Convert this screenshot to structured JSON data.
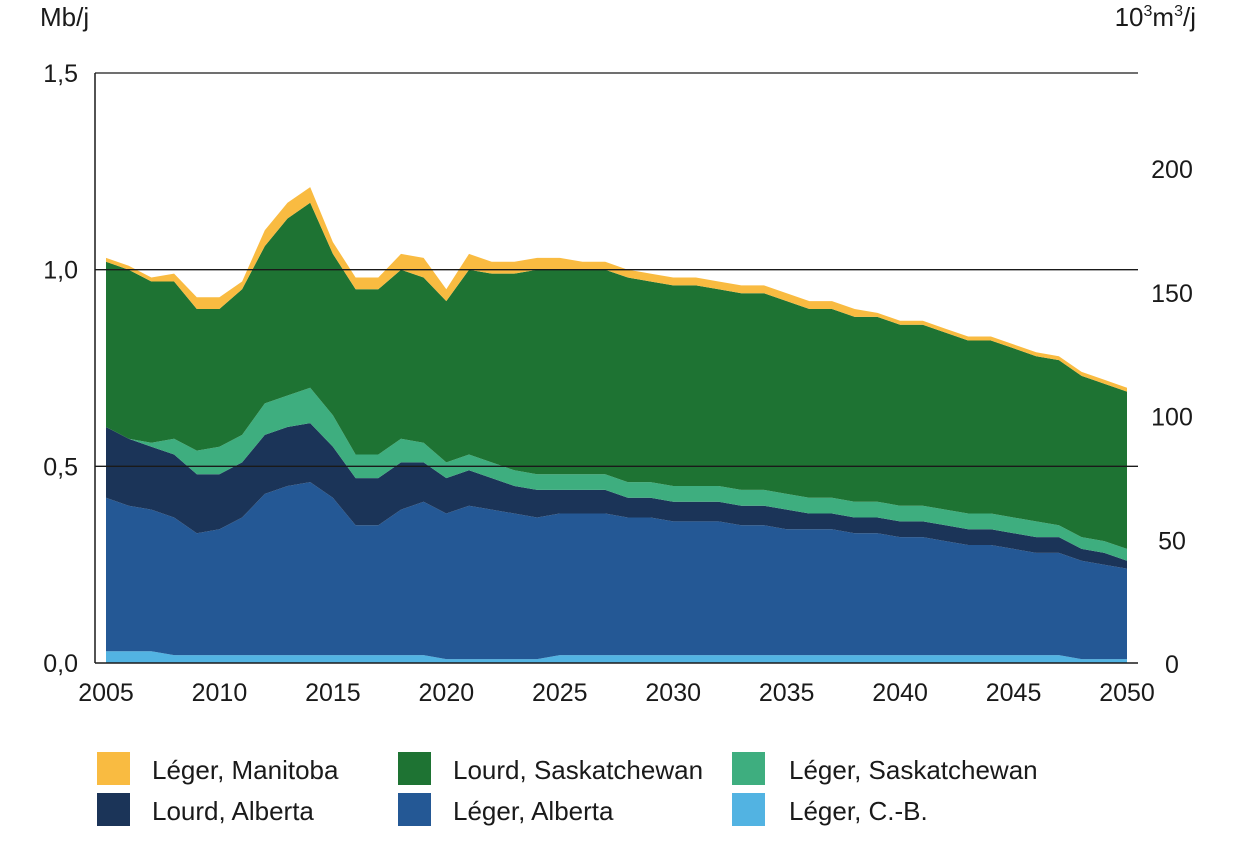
{
  "chart_data": {
    "type": "area",
    "stacked": true,
    "left_unit": "Mb/j",
    "right_unit_base": "10",
    "right_unit_exp1": "3",
    "right_unit_mid": "m",
    "right_unit_exp2": "3",
    "right_unit_end": "/j",
    "xlim": [
      2005,
      2050
    ],
    "ylim": [
      0,
      1.5
    ],
    "ylim_right": [
      0,
      238.5
    ],
    "x_ticks": [
      "2005",
      "2010",
      "2015",
      "2020",
      "2025",
      "2030",
      "2035",
      "2040",
      "2045",
      "2050"
    ],
    "x_tick_values": [
      2005,
      2010,
      2015,
      2020,
      2025,
      2030,
      2035,
      2040,
      2045,
      2050
    ],
    "y_ticks": [
      "0,0",
      "0,5",
      "1,0",
      "1,5"
    ],
    "y_tick_values": [
      0,
      0.5,
      1.0,
      1.5
    ],
    "y_right_ticks": [
      "0",
      "50",
      "100",
      "150",
      "200"
    ],
    "y_right_tick_values": [
      0,
      50,
      100,
      150,
      200
    ],
    "gridlines": [
      0.5,
      1.0,
      1.5
    ],
    "legend_position": "bottom",
    "x": [
      2005,
      2006,
      2007,
      2008,
      2009,
      2010,
      2011,
      2012,
      2013,
      2014,
      2015,
      2016,
      2017,
      2018,
      2019,
      2020,
      2021,
      2022,
      2023,
      2024,
      2025,
      2026,
      2027,
      2028,
      2029,
      2030,
      2031,
      2032,
      2033,
      2034,
      2035,
      2036,
      2037,
      2038,
      2039,
      2040,
      2041,
      2042,
      2043,
      2044,
      2045,
      2046,
      2047,
      2048,
      2049,
      2050
    ],
    "series": [
      {
        "name": "Léger, C.-B.",
        "color": "#52b3e2",
        "values": [
          0.03,
          0.03,
          0.03,
          0.02,
          0.02,
          0.02,
          0.02,
          0.02,
          0.02,
          0.02,
          0.02,
          0.02,
          0.02,
          0.02,
          0.02,
          0.01,
          0.01,
          0.01,
          0.01,
          0.01,
          0.02,
          0.02,
          0.02,
          0.02,
          0.02,
          0.02,
          0.02,
          0.02,
          0.02,
          0.02,
          0.02,
          0.02,
          0.02,
          0.02,
          0.02,
          0.02,
          0.02,
          0.02,
          0.02,
          0.02,
          0.02,
          0.02,
          0.02,
          0.01,
          0.01,
          0.01
        ]
      },
      {
        "name": "Léger, Alberta",
        "color": "#245895",
        "values": [
          0.39,
          0.37,
          0.36,
          0.35,
          0.31,
          0.32,
          0.35,
          0.41,
          0.43,
          0.44,
          0.4,
          0.33,
          0.33,
          0.37,
          0.39,
          0.37,
          0.39,
          0.38,
          0.37,
          0.36,
          0.36,
          0.36,
          0.36,
          0.35,
          0.35,
          0.34,
          0.34,
          0.34,
          0.33,
          0.33,
          0.32,
          0.32,
          0.32,
          0.31,
          0.31,
          0.3,
          0.3,
          0.29,
          0.28,
          0.28,
          0.27,
          0.26,
          0.26,
          0.25,
          0.24,
          0.23
        ]
      },
      {
        "name": "Lourd, Alberta",
        "color": "#1b3458",
        "values": [
          0.18,
          0.17,
          0.16,
          0.16,
          0.15,
          0.14,
          0.14,
          0.15,
          0.15,
          0.15,
          0.13,
          0.12,
          0.12,
          0.12,
          0.1,
          0.09,
          0.09,
          0.08,
          0.07,
          0.07,
          0.06,
          0.06,
          0.06,
          0.05,
          0.05,
          0.05,
          0.05,
          0.05,
          0.05,
          0.05,
          0.05,
          0.04,
          0.04,
          0.04,
          0.04,
          0.04,
          0.04,
          0.04,
          0.04,
          0.04,
          0.04,
          0.04,
          0.04,
          0.03,
          0.03,
          0.02
        ]
      },
      {
        "name": "Léger, Saskatchewan",
        "color": "#3eae7f",
        "values": [
          0.0,
          0.0,
          0.01,
          0.04,
          0.06,
          0.07,
          0.07,
          0.08,
          0.08,
          0.09,
          0.08,
          0.06,
          0.06,
          0.06,
          0.05,
          0.04,
          0.04,
          0.04,
          0.04,
          0.04,
          0.04,
          0.04,
          0.04,
          0.04,
          0.04,
          0.04,
          0.04,
          0.04,
          0.04,
          0.04,
          0.04,
          0.04,
          0.04,
          0.04,
          0.04,
          0.04,
          0.04,
          0.04,
          0.04,
          0.04,
          0.04,
          0.04,
          0.03,
          0.03,
          0.03,
          0.03
        ]
      },
      {
        "name": "Lourd, Saskatchewan",
        "color": "#1e7333",
        "values": [
          0.42,
          0.43,
          0.41,
          0.4,
          0.36,
          0.35,
          0.37,
          0.4,
          0.45,
          0.47,
          0.41,
          0.42,
          0.42,
          0.43,
          0.42,
          0.41,
          0.47,
          0.48,
          0.5,
          0.52,
          0.52,
          0.52,
          0.52,
          0.52,
          0.51,
          0.51,
          0.51,
          0.5,
          0.5,
          0.5,
          0.49,
          0.48,
          0.48,
          0.47,
          0.47,
          0.46,
          0.46,
          0.45,
          0.44,
          0.44,
          0.43,
          0.42,
          0.42,
          0.41,
          0.4,
          0.4
        ]
      },
      {
        "name": "Léger, Manitoba",
        "color": "#f9bb41",
        "values": [
          0.01,
          0.01,
          0.01,
          0.02,
          0.03,
          0.03,
          0.02,
          0.04,
          0.04,
          0.04,
          0.03,
          0.03,
          0.03,
          0.04,
          0.05,
          0.03,
          0.04,
          0.03,
          0.03,
          0.03,
          0.03,
          0.02,
          0.02,
          0.02,
          0.02,
          0.02,
          0.02,
          0.02,
          0.02,
          0.02,
          0.02,
          0.02,
          0.02,
          0.02,
          0.01,
          0.01,
          0.01,
          0.01,
          0.01,
          0.01,
          0.01,
          0.01,
          0.01,
          0.01,
          0.01,
          0.01
        ]
      }
    ],
    "legend_order": [
      "Léger, Manitoba",
      "Lourd, Saskatchewan",
      "Léger, Saskatchewan",
      "Lourd, Alberta",
      "Léger, Alberta",
      "Léger, C.-B."
    ]
  }
}
